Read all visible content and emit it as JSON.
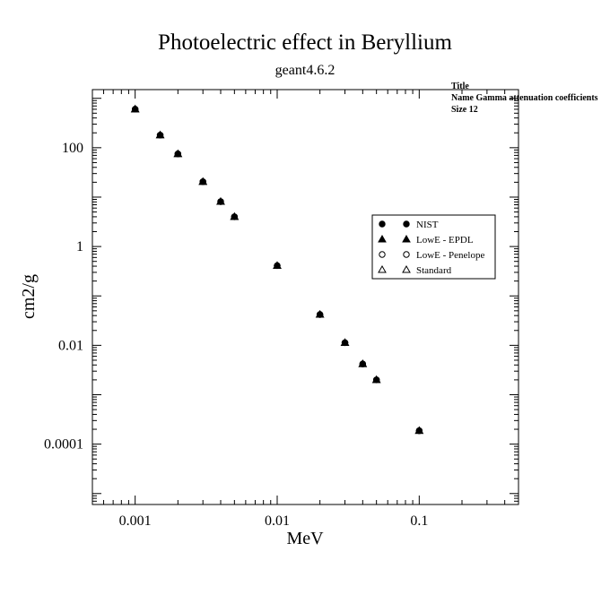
{
  "info_box": {
    "title_label": "Title",
    "name_line": "Name  Gamma attenuation coefficients",
    "size_line": "Size  12"
  },
  "chart_data": {
    "type": "scatter",
    "title": "Photoelectric effect in Beryllium",
    "subtitle": "geant4.6.2",
    "xlabel": "MeV",
    "ylabel": "cm2/g",
    "xscale": "log",
    "yscale": "log",
    "xlim": [
      0.0005,
      0.5
    ],
    "ylim": [
      6e-06,
      1500
    ],
    "x_ticks": [
      {
        "value": 0.001,
        "label": "0.001"
      },
      {
        "value": 0.01,
        "label": "0.01"
      },
      {
        "value": 0.1,
        "label": "0.1"
      }
    ],
    "y_ticks": [
      {
        "value": 100,
        "label": "100"
      },
      {
        "value": 1,
        "label": "1"
      },
      {
        "value": 0.01,
        "label": "0.01"
      },
      {
        "value": 0.0001,
        "label": "0.0001"
      }
    ],
    "grid": false,
    "legend_position": "right",
    "x": [
      0.001,
      0.0015,
      0.002,
      0.003,
      0.004,
      0.005,
      0.01,
      0.02,
      0.03,
      0.04,
      0.05,
      0.1
    ],
    "series": [
      {
        "name": "NIST",
        "marker": "filled-circle",
        "values": [
          603,
          180,
          75,
          20.5,
          8.1,
          4.0,
          0.41,
          0.042,
          0.0113,
          0.0042,
          0.002,
          0.000187
        ]
      },
      {
        "name": "LowE - EPDL",
        "marker": "filled-triangle",
        "values": [
          603,
          180,
          75,
          20.5,
          8.1,
          4.0,
          0.41,
          0.042,
          0.0113,
          0.0042,
          0.002,
          0.000187
        ]
      },
      {
        "name": "LowE - Penelope",
        "marker": "open-circle",
        "values": [
          603,
          180,
          75,
          20.5,
          8.1,
          4.0,
          0.41,
          0.042,
          0.0113,
          0.0042,
          0.002,
          0.000187
        ]
      },
      {
        "name": "Standard",
        "marker": "open-triangle",
        "values": [
          603,
          180,
          75,
          20.5,
          8.1,
          4.0,
          0.41,
          0.042,
          0.0113,
          0.0042,
          0.002,
          0.000187
        ]
      }
    ]
  }
}
